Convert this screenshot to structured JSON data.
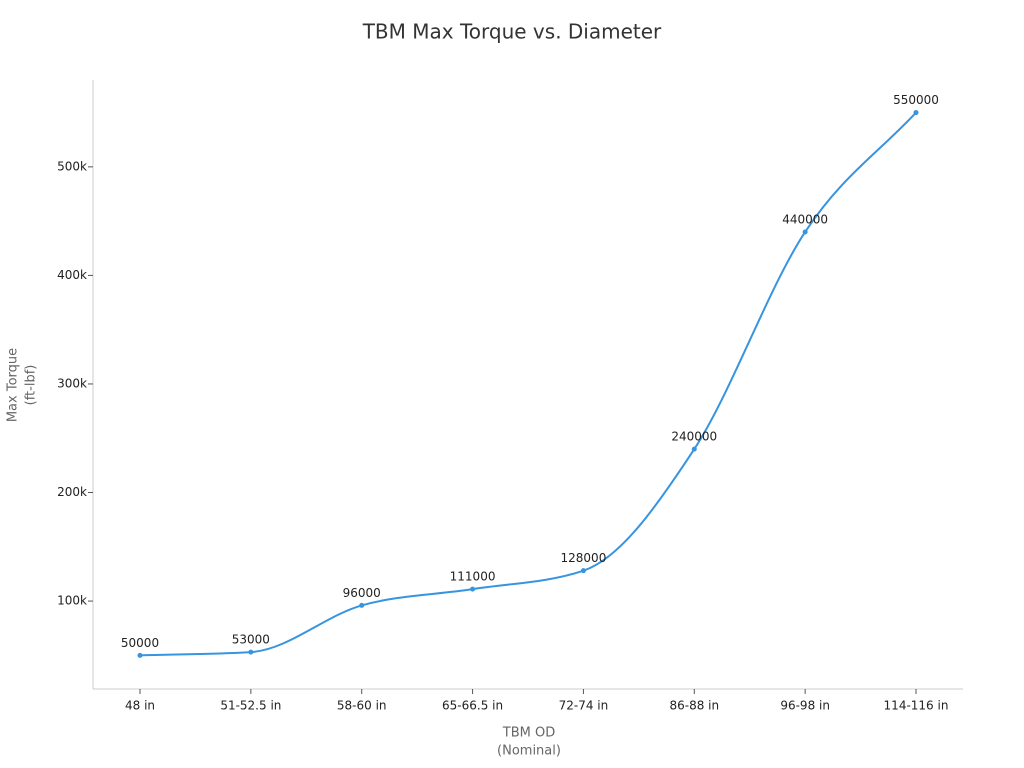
{
  "chart_data": {
    "type": "line",
    "title": "TBM Max Torque vs. Diameter",
    "x_label": [
      "TBM OD",
      "(Nominal)"
    ],
    "y_label": [
      "Max Torque",
      "(ft-lbf)"
    ],
    "categories": [
      "48 in",
      "51-52.5 in",
      "58-60 in",
      "65-66.5 in",
      "72-74 in",
      "86-88 in",
      "96-98 in",
      "114-116 in"
    ],
    "series": [
      {
        "name": "Max Torque",
        "color": "#3794e0",
        "values": [
          50000,
          53000,
          96000,
          111000,
          128000,
          240000,
          440000,
          550000
        ]
      }
    ],
    "ylim": [
      19000,
      580000
    ],
    "yticks": [
      {
        "value": 100000,
        "label": "100k"
      },
      {
        "value": 200000,
        "label": "200k"
      },
      {
        "value": 300000,
        "label": "300k"
      },
      {
        "value": 400000,
        "label": "400k"
      },
      {
        "value": 500000,
        "label": "500k"
      }
    ],
    "smooth": true,
    "show_value_labels": true
  }
}
